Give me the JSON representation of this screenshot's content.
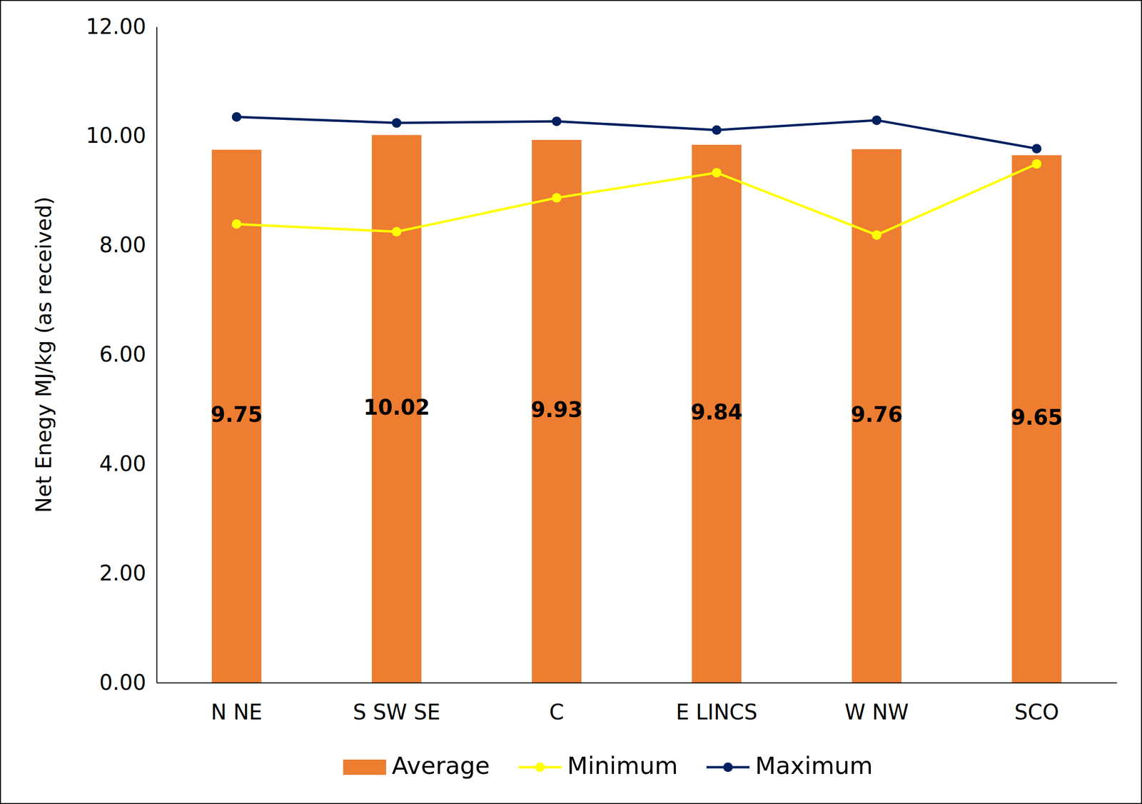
{
  "chart_data": {
    "type": "bar",
    "y_label": "Net Enegy MJ/kg (as received)",
    "categories": [
      "N NE",
      "S SW SE",
      "C",
      "E LINCS",
      "W NW",
      "SCO"
    ],
    "series": [
      {
        "name": "Average",
        "type": "bar",
        "color": "#ED7D31",
        "data_labels": true,
        "values": [
          9.75,
          10.02,
          9.93,
          9.84,
          9.76,
          9.65
        ]
      },
      {
        "name": "Minimum",
        "type": "line",
        "color": "#FFFF00",
        "marker": "circle",
        "values": [
          8.39,
          8.25,
          8.87,
          9.33,
          8.19,
          9.49
        ]
      },
      {
        "name": "Maximum",
        "type": "line",
        "color": "#002060",
        "marker": "circle",
        "values": [
          10.35,
          10.24,
          10.27,
          10.11,
          10.29,
          9.77
        ]
      }
    ],
    "ylim": [
      0,
      12
    ],
    "yticks": [
      {
        "value": 0,
        "label": "0.00"
      },
      {
        "value": 2,
        "label": "2.00"
      },
      {
        "value": 4,
        "label": "4.00"
      },
      {
        "value": 6,
        "label": "6.00"
      },
      {
        "value": 8,
        "label": "8.00"
      },
      {
        "value": 10,
        "label": "10.00"
      },
      {
        "value": 12,
        "label": "12.00"
      }
    ],
    "grid": false,
    "legend": "bottom"
  }
}
